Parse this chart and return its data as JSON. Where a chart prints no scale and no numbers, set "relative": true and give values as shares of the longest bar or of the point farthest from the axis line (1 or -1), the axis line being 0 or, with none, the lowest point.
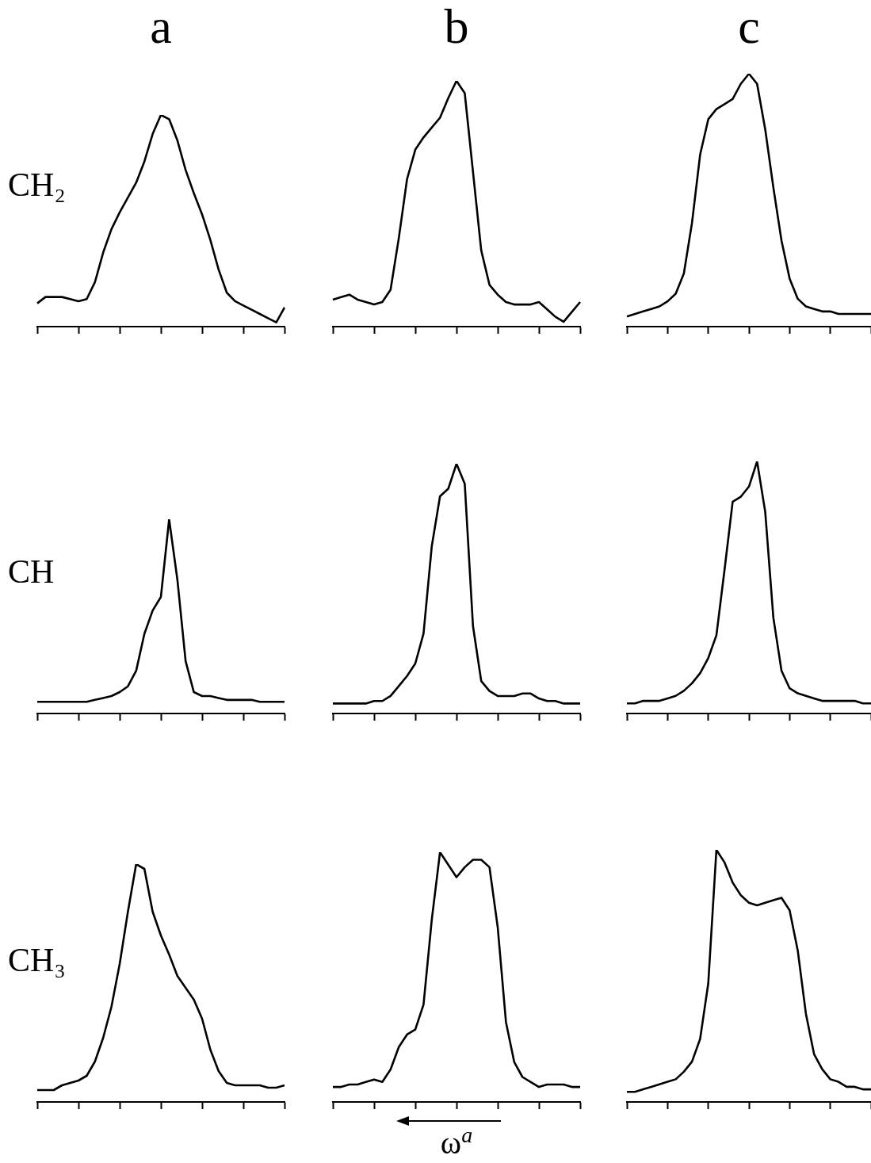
{
  "chart_data": [
    {
      "type": "line",
      "title": "a",
      "ylabel": "CH₂",
      "relative": true,
      "tick_labels": false,
      "color": "#000000",
      "categories": [
        null,
        null,
        null,
        null,
        null,
        null,
        null,
        null,
        null,
        null,
        null,
        null,
        null,
        null,
        null,
        null,
        null,
        null,
        null,
        null,
        null,
        null,
        null,
        null,
        null,
        null,
        null,
        null,
        null,
        null,
        null
      ],
      "values": [
        0.11,
        0.14,
        0.14,
        0.14,
        0.13,
        0.12,
        0.13,
        0.21,
        0.35,
        0.46,
        0.54,
        0.61,
        0.68,
        0.78,
        0.91,
        1,
        0.98,
        0.88,
        0.74,
        0.63,
        0.53,
        0.41,
        0.27,
        0.16,
        0.12,
        0.1,
        0.08,
        0.06,
        0.04,
        0.02,
        0.09
      ]
    },
    {
      "type": "line",
      "title": "b",
      "relative": true,
      "tick_labels": false,
      "color": "#000000",
      "categories": [
        null,
        null,
        null,
        null,
        null,
        null,
        null,
        null,
        null,
        null,
        null,
        null,
        null,
        null,
        null,
        null,
        null,
        null,
        null,
        null,
        null,
        null,
        null,
        null,
        null,
        null,
        null,
        null,
        null,
        null,
        null
      ],
      "values": [
        0.11,
        0.12,
        0.13,
        0.11,
        0.1,
        0.09,
        0.1,
        0.15,
        0.36,
        0.6,
        0.72,
        0.77,
        0.81,
        0.85,
        0.93,
        1,
        0.95,
        0.63,
        0.31,
        0.17,
        0.13,
        0.1,
        0.09,
        0.09,
        0.09,
        0.1,
        0.07,
        0.04,
        0.02,
        0.06,
        0.1
      ]
    },
    {
      "type": "line",
      "title": "c",
      "relative": true,
      "tick_labels": false,
      "color": "#000000",
      "categories": [
        null,
        null,
        null,
        null,
        null,
        null,
        null,
        null,
        null,
        null,
        null,
        null,
        null,
        null,
        null,
        null,
        null,
        null,
        null,
        null,
        null,
        null,
        null,
        null,
        null,
        null,
        null,
        null,
        null,
        null,
        null
      ],
      "values": [
        0.04,
        0.05,
        0.06,
        0.07,
        0.08,
        0.1,
        0.13,
        0.21,
        0.41,
        0.68,
        0.82,
        0.86,
        0.88,
        0.9,
        0.96,
        1,
        0.96,
        0.78,
        0.55,
        0.34,
        0.19,
        0.11,
        0.08,
        0.07,
        0.06,
        0.06,
        0.05,
        0.05,
        0.05,
        0.05,
        0.05
      ]
    },
    {
      "type": "line",
      "ylabel": "CH",
      "relative": true,
      "tick_labels": false,
      "color": "#000000",
      "categories": [
        null,
        null,
        null,
        null,
        null,
        null,
        null,
        null,
        null,
        null,
        null,
        null,
        null,
        null,
        null,
        null,
        null,
        null,
        null,
        null,
        null,
        null,
        null,
        null,
        null,
        null,
        null,
        null,
        null,
        null,
        null
      ],
      "values": [
        0.06,
        0.06,
        0.06,
        0.06,
        0.06,
        0.06,
        0.06,
        0.07,
        0.08,
        0.09,
        0.11,
        0.14,
        0.22,
        0.41,
        0.53,
        0.6,
        1,
        0.69,
        0.27,
        0.11,
        0.09,
        0.09,
        0.08,
        0.07,
        0.07,
        0.07,
        0.07,
        0.06,
        0.06,
        0.06,
        0.06
      ]
    },
    {
      "type": "line",
      "relative": true,
      "tick_labels": false,
      "color": "#000000",
      "categories": [
        null,
        null,
        null,
        null,
        null,
        null,
        null,
        null,
        null,
        null,
        null,
        null,
        null,
        null,
        null,
        null,
        null,
        null,
        null,
        null,
        null,
        null,
        null,
        null,
        null,
        null,
        null,
        null,
        null,
        null,
        null
      ],
      "values": [
        0.04,
        0.04,
        0.04,
        0.04,
        0.04,
        0.05,
        0.05,
        0.07,
        0.11,
        0.15,
        0.2,
        0.32,
        0.67,
        0.87,
        0.9,
        1,
        0.92,
        0.35,
        0.13,
        0.09,
        0.07,
        0.07,
        0.07,
        0.08,
        0.08,
        0.06,
        0.05,
        0.05,
        0.04,
        0.04,
        0.04
      ]
    },
    {
      "type": "line",
      "relative": true,
      "tick_labels": false,
      "color": "#000000",
      "categories": [
        null,
        null,
        null,
        null,
        null,
        null,
        null,
        null,
        null,
        null,
        null,
        null,
        null,
        null,
        null,
        null,
        null,
        null,
        null,
        null,
        null,
        null,
        null,
        null,
        null,
        null,
        null,
        null,
        null,
        null,
        null
      ],
      "values": [
        0.04,
        0.04,
        0.05,
        0.05,
        0.05,
        0.06,
        0.07,
        0.09,
        0.12,
        0.16,
        0.22,
        0.31,
        0.57,
        0.84,
        0.86,
        0.9,
        1,
        0.8,
        0.38,
        0.17,
        0.1,
        0.08,
        0.07,
        0.06,
        0.05,
        0.05,
        0.05,
        0.05,
        0.05,
        0.04,
        0.04
      ]
    },
    {
      "type": "line",
      "ylabel": "CH₃",
      "relative": true,
      "tick_labels": false,
      "color": "#000000",
      "categories": [
        null,
        null,
        null,
        null,
        null,
        null,
        null,
        null,
        null,
        null,
        null,
        null,
        null,
        null,
        null,
        null,
        null,
        null,
        null,
        null,
        null,
        null,
        null,
        null,
        null,
        null,
        null,
        null,
        null,
        null,
        null
      ],
      "values": [
        0.05,
        0.05,
        0.05,
        0.07,
        0.08,
        0.09,
        0.11,
        0.17,
        0.27,
        0.4,
        0.58,
        0.8,
        1,
        0.98,
        0.8,
        0.7,
        0.62,
        0.53,
        0.48,
        0.43,
        0.35,
        0.22,
        0.13,
        0.08,
        0.07,
        0.07,
        0.07,
        0.07,
        0.06,
        0.06,
        0.07
      ]
    },
    {
      "type": "line",
      "xlabel": "ω$^{a}$",
      "relative": true,
      "tick_labels": false,
      "color": "#000000",
      "categories": [
        null,
        null,
        null,
        null,
        null,
        null,
        null,
        null,
        null,
        null,
        null,
        null,
        null,
        null,
        null,
        null,
        null,
        null,
        null,
        null,
        null,
        null,
        null,
        null,
        null,
        null,
        null,
        null,
        null,
        null,
        null
      ],
      "values": [
        0.06,
        0.06,
        0.07,
        0.07,
        0.08,
        0.09,
        0.08,
        0.13,
        0.22,
        0.27,
        0.29,
        0.39,
        0.73,
        1,
        0.95,
        0.9,
        0.94,
        0.97,
        0.97,
        0.94,
        0.7,
        0.32,
        0.16,
        0.1,
        0.08,
        0.06,
        0.07,
        0.07,
        0.07,
        0.06,
        0.06
      ]
    },
    {
      "type": "line",
      "relative": true,
      "tick_labels": false,
      "color": "#000000",
      "categories": [
        null,
        null,
        null,
        null,
        null,
        null,
        null,
        null,
        null,
        null,
        null,
        null,
        null,
        null,
        null,
        null,
        null,
        null,
        null,
        null,
        null,
        null,
        null,
        null,
        null,
        null,
        null,
        null,
        null,
        null,
        null
      ],
      "values": [
        0.04,
        0.04,
        0.05,
        0.06,
        0.07,
        0.08,
        0.09,
        0.12,
        0.16,
        0.25,
        0.47,
        1,
        0.95,
        0.87,
        0.82,
        0.79,
        0.78,
        0.79,
        0.8,
        0.81,
        0.76,
        0.6,
        0.35,
        0.19,
        0.13,
        0.09,
        0.08,
        0.06,
        0.06,
        0.05,
        0.05
      ]
    }
  ]
}
